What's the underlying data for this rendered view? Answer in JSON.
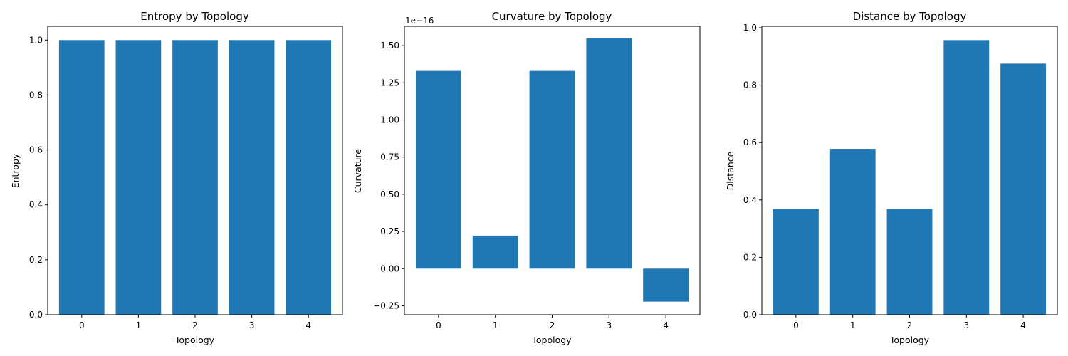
{
  "chart_data": [
    {
      "type": "bar",
      "title": "Entropy by Topology",
      "xlabel": "Topology",
      "ylabel": "Entropy",
      "categories": [
        "0",
        "1",
        "2",
        "3",
        "4"
      ],
      "values": [
        1.0,
        1.0,
        1.0,
        1.0,
        1.0
      ],
      "ylim": [
        0,
        1.05
      ],
      "yticks": [
        0.0,
        0.2,
        0.4,
        0.6,
        0.8,
        1.0
      ],
      "ytick_labels": [
        "0.0",
        "0.2",
        "0.4",
        "0.6",
        "0.8",
        "1.0"
      ],
      "color": "#1f77b4",
      "grid": false
    },
    {
      "type": "bar",
      "title": "Curvature by Topology",
      "xlabel": "Topology",
      "ylabel": "Curvature",
      "offset_label": "1e−16",
      "categories": [
        "0",
        "1",
        "2",
        "3",
        "4"
      ],
      "values": [
        1.33e-16,
        2.22e-17,
        1.33e-16,
        1.55e-16,
        -2.22e-17
      ],
      "ylim": [
        -3.1e-17,
        1.63e-16
      ],
      "yticks": [
        -2.5e-17,
        0,
        2.5e-17,
        5e-17,
        7.5e-17,
        1e-16,
        1.25e-16,
        1.5e-16
      ],
      "ytick_labels": [
        "−0.25",
        "0.00",
        "0.25",
        "0.50",
        "0.75",
        "1.00",
        "1.25",
        "1.50"
      ],
      "color": "#1f77b4",
      "grid": false
    },
    {
      "type": "bar",
      "title": "Distance by Topology",
      "xlabel": "Topology",
      "ylabel": "Distance",
      "categories": [
        "0",
        "1",
        "2",
        "3",
        "4"
      ],
      "values": [
        0.368,
        0.578,
        0.368,
        0.957,
        0.875
      ],
      "ylim": [
        0,
        1.005
      ],
      "yticks": [
        0.0,
        0.2,
        0.4,
        0.6,
        0.8,
        1.0
      ],
      "ytick_labels": [
        "0.0",
        "0.2",
        "0.4",
        "0.6",
        "0.8",
        "1.0"
      ],
      "color": "#1f77b4",
      "grid": false
    }
  ]
}
